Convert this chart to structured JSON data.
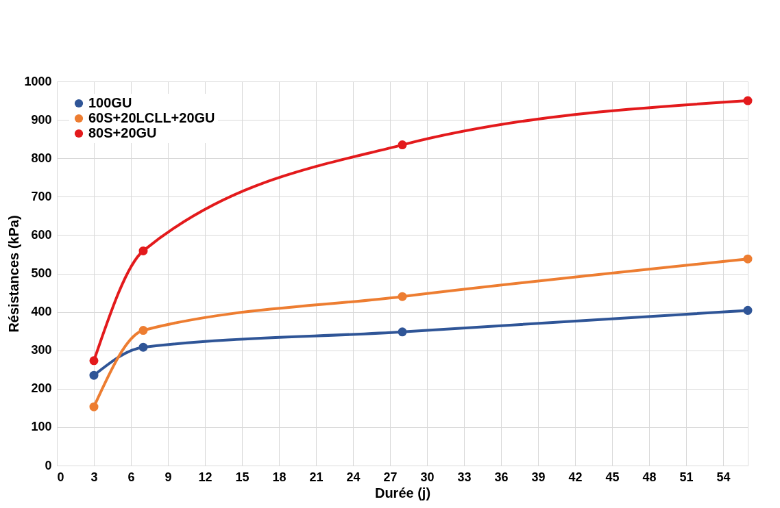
{
  "chart_data": {
    "type": "line",
    "xlabel": "Durée (j)",
    "ylabel": "Résistances (kPa)",
    "x": [
      3,
      7,
      28,
      56
    ],
    "series": [
      {
        "name": "100GU",
        "color": "#2f5597",
        "values": [
          235,
          308,
          348,
          404
        ]
      },
      {
        "name": "60S+20LCLL+20GU",
        "color": "#ed7d31",
        "values": [
          153,
          352,
          440,
          538
        ]
      },
      {
        "name": "80S+20GU",
        "color": "#e31a1c",
        "values": [
          273,
          559,
          835,
          950
        ]
      }
    ],
    "xlim": [
      0,
      56
    ],
    "xticks": [
      0,
      3,
      6,
      9,
      12,
      15,
      18,
      21,
      24,
      27,
      30,
      33,
      36,
      39,
      42,
      45,
      48,
      51,
      54
    ],
    "ylim": [
      0,
      1000
    ],
    "yticks": [
      0,
      100,
      200,
      300,
      400,
      500,
      600,
      700,
      800,
      900,
      1000
    ],
    "grid": true,
    "legend": "top left",
    "marker": "circle",
    "line_style": "solid"
  }
}
